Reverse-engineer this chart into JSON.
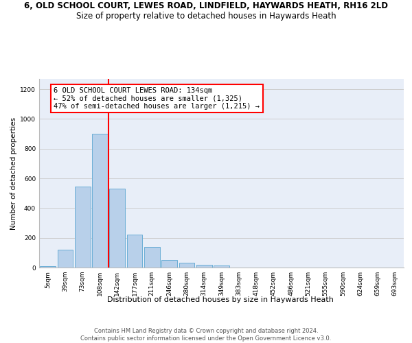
{
  "title": "6, OLD SCHOOL COURT, LEWES ROAD, LINDFIELD, HAYWARDS HEATH, RH16 2LD",
  "subtitle": "Size of property relative to detached houses in Haywards Heath",
  "xlabel": "Distribution of detached houses by size in Haywards Heath",
  "ylabel": "Number of detached properties",
  "categories": [
    "5sqm",
    "39sqm",
    "73sqm",
    "108sqm",
    "142sqm",
    "177sqm",
    "211sqm",
    "246sqm",
    "280sqm",
    "314sqm",
    "349sqm",
    "383sqm",
    "418sqm",
    "452sqm",
    "486sqm",
    "521sqm",
    "555sqm",
    "590sqm",
    "624sqm",
    "659sqm",
    "693sqm"
  ],
  "bar_heights": [
    8,
    120,
    545,
    900,
    530,
    220,
    140,
    52,
    32,
    20,
    12,
    0,
    0,
    0,
    0,
    0,
    0,
    0,
    0,
    0,
    0
  ],
  "bar_color": "#b8d0ea",
  "bar_edgecolor": "#6baed6",
  "bar_linewidth": 0.7,
  "vline_color": "red",
  "vline_linewidth": 1.5,
  "vline_x": 3.5,
  "ylim": [
    0,
    1270
  ],
  "yticks": [
    0,
    200,
    400,
    600,
    800,
    1000,
    1200
  ],
  "annotation_text": "6 OLD SCHOOL COURT LEWES ROAD: 134sqm\n← 52% of detached houses are smaller (1,325)\n47% of semi-detached houses are larger (1,215) →",
  "background_color": "#e8eef8",
  "grid_color": "#c8c8c8",
  "title_fontsize": 8.5,
  "subtitle_fontsize": 8.5,
  "xlabel_fontsize": 8.0,
  "ylabel_fontsize": 7.5,
  "tick_fontsize": 6.5,
  "annotation_fontsize": 7.5,
  "footer_fontsize": 6.0,
  "footer_text": "Contains HM Land Registry data © Crown copyright and database right 2024.\nContains public sector information licensed under the Open Government Licence v3.0."
}
